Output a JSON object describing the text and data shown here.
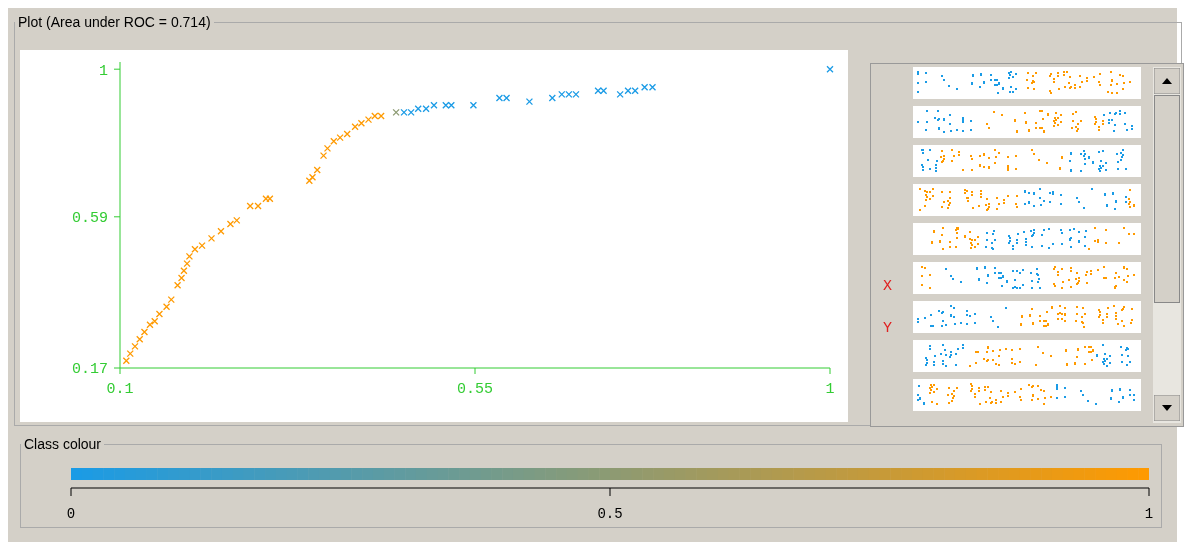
{
  "chart_data": {
    "type": "scatter",
    "title": "Plot (Area under ROC = 0.714)",
    "clabel": "Class colour",
    "clim": [
      0,
      1
    ],
    "cticks": [
      0,
      0.5,
      1
    ],
    "marker": "cross",
    "xlim": [
      0.1,
      1
    ],
    "xticks": [
      0.1,
      0.55,
      1
    ],
    "ylim": [
      0.17,
      1.02
    ],
    "yticks": [
      0.17,
      0.59,
      1
    ],
    "annotations": [
      "X",
      "Y"
    ],
    "series": [
      {
        "x": [
          0.108,
          0.113,
          0.119,
          0.125,
          0.131,
          0.138,
          0.144,
          0.15,
          0.159,
          0.165,
          0.173,
          0.178,
          0.181,
          0.185,
          0.188,
          0.195,
          0.204,
          0.216,
          0.228,
          0.24,
          0.248,
          0.265,
          0.275,
          0.285,
          0.29,
          0.34,
          0.344,
          0.35,
          0.358,
          0.363,
          0.371,
          0.379,
          0.388,
          0.398,
          0.406,
          0.415,
          0.423,
          0.431,
          0.45,
          0.46,
          0.469,
          0.478,
          0.488,
          0.498,
          0.513,
          0.52,
          0.548,
          0.581,
          0.59,
          0.619,
          0.648,
          0.66,
          0.669,
          0.678,
          0.706,
          0.713,
          0.734,
          0.744,
          0.753,
          0.765,
          0.775,
          1
        ],
        "values": [
          0.19,
          0.21,
          0.23,
          0.25,
          0.27,
          0.29,
          0.3,
          0.32,
          0.34,
          0.36,
          0.4,
          0.42,
          0.44,
          0.46,
          0.48,
          0.5,
          0.51,
          0.53,
          0.55,
          0.57,
          0.58,
          0.62,
          0.62,
          0.64,
          0.64,
          0.69,
          0.7,
          0.72,
          0.76,
          0.78,
          0.8,
          0.81,
          0.82,
          0.84,
          0.85,
          0.86,
          0.87,
          0.87,
          0.88,
          0.88,
          0.88,
          0.89,
          0.89,
          0.9,
          0.9,
          0.9,
          0.9,
          0.92,
          0.92,
          0.91,
          0.92,
          0.93,
          0.93,
          0.93,
          0.94,
          0.94,
          0.93,
          0.94,
          0.94,
          0.95,
          0.95,
          1
        ],
        "cvalues": [
          1,
          1,
          1,
          1,
          1,
          1,
          1,
          1,
          1,
          1,
          1,
          1,
          1,
          1,
          1,
          1,
          1,
          1,
          1,
          1,
          1,
          1,
          1,
          1,
          1,
          1,
          1,
          1,
          1,
          1,
          1,
          1,
          1,
          1,
          1,
          1,
          1,
          1,
          0.5,
          0,
          0,
          0,
          0,
          0,
          0,
          0,
          0,
          0,
          0,
          0,
          0,
          0,
          0,
          0,
          0,
          0,
          0,
          0,
          0,
          0,
          0,
          0
        ]
      }
    ]
  }
}
